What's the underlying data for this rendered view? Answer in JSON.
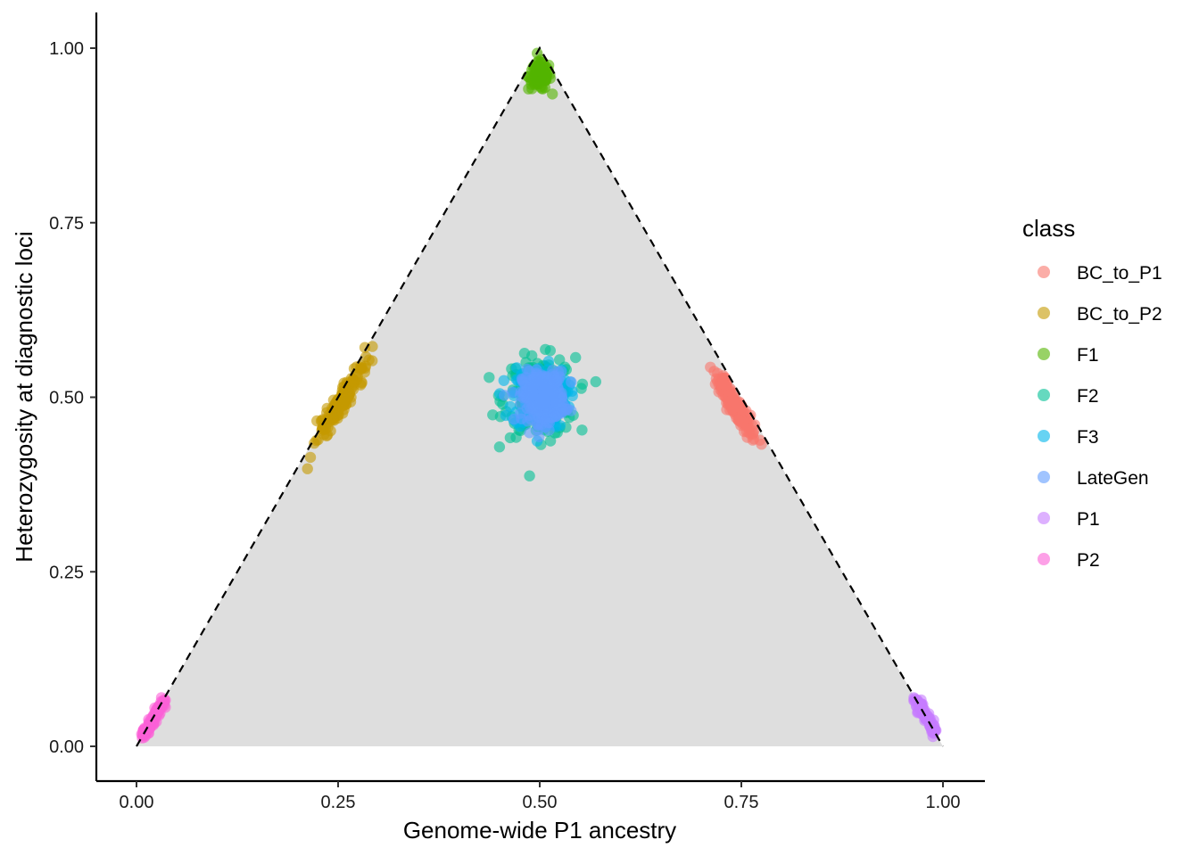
{
  "chart_data": {
    "type": "scatter",
    "title": "",
    "xlabel": "Genome-wide P1 ancestry",
    "ylabel": "Heterozygosity at diagnostic loci",
    "xlim": [
      -0.1,
      1.05
    ],
    "ylim": [
      -0.05,
      1.05
    ],
    "x_ticks": [
      "0.00",
      "0.25",
      "0.50",
      "0.75",
      "1.00"
    ],
    "y_ticks": [
      "0.00",
      "0.25",
      "0.50",
      "0.75",
      "1.00"
    ],
    "x_tick_values": [
      0,
      0.25,
      0.5,
      0.75,
      1
    ],
    "y_tick_values": [
      0,
      0.25,
      0.5,
      0.75,
      1
    ],
    "grid": false,
    "triangle": {
      "vertices": [
        [
          0,
          0
        ],
        [
          0.5,
          1
        ],
        [
          1,
          0
        ]
      ],
      "fill": "#dedede",
      "edge_style": "dashed",
      "edge_color": "#000000"
    },
    "point_opacity": 0.6,
    "legend": {
      "title": "class",
      "position": "right"
    },
    "series": [
      {
        "name": "BC_to_P1",
        "color": "#F8766D",
        "n": 150,
        "center_x": 0.741,
        "center_y": 0.49,
        "spread_x": 0.005,
        "spread_y": 0.025,
        "along_edge": true
      },
      {
        "name": "BC_to_P2",
        "color": "#C49A00",
        "n": 150,
        "center_x": 0.255,
        "center_y": 0.495,
        "spread_x": 0.005,
        "spread_y": 0.028,
        "along_edge": true
      },
      {
        "name": "F1",
        "color": "#53B400",
        "n": 100,
        "center_x": 0.5,
        "center_y": 0.96,
        "spread_x": 0.007,
        "spread_y": 0.01
      },
      {
        "name": "F2",
        "color": "#00C094",
        "n": 200,
        "center_x": 0.5,
        "center_y": 0.5,
        "spread_x": 0.022,
        "spread_y": 0.028
      },
      {
        "name": "F3",
        "color": "#00B6EB",
        "n": 200,
        "center_x": 0.5,
        "center_y": 0.5,
        "spread_x": 0.017,
        "spread_y": 0.022
      },
      {
        "name": "LateGen",
        "color": "#619CFF",
        "n": 300,
        "center_x": 0.505,
        "center_y": 0.5,
        "spread_x": 0.013,
        "spread_y": 0.018
      },
      {
        "name": "P1",
        "color": "#C77CFF",
        "n": 100,
        "x_range": [
          0.965,
          0.99
        ],
        "y_range": [
          0.02,
          0.07
        ],
        "along_edge": true
      },
      {
        "name": "P2",
        "color": "#FB61D7",
        "n": 100,
        "x_range": [
          0.008,
          0.034
        ],
        "y_range": [
          0.015,
          0.065
        ],
        "along_edge": true
      }
    ]
  }
}
